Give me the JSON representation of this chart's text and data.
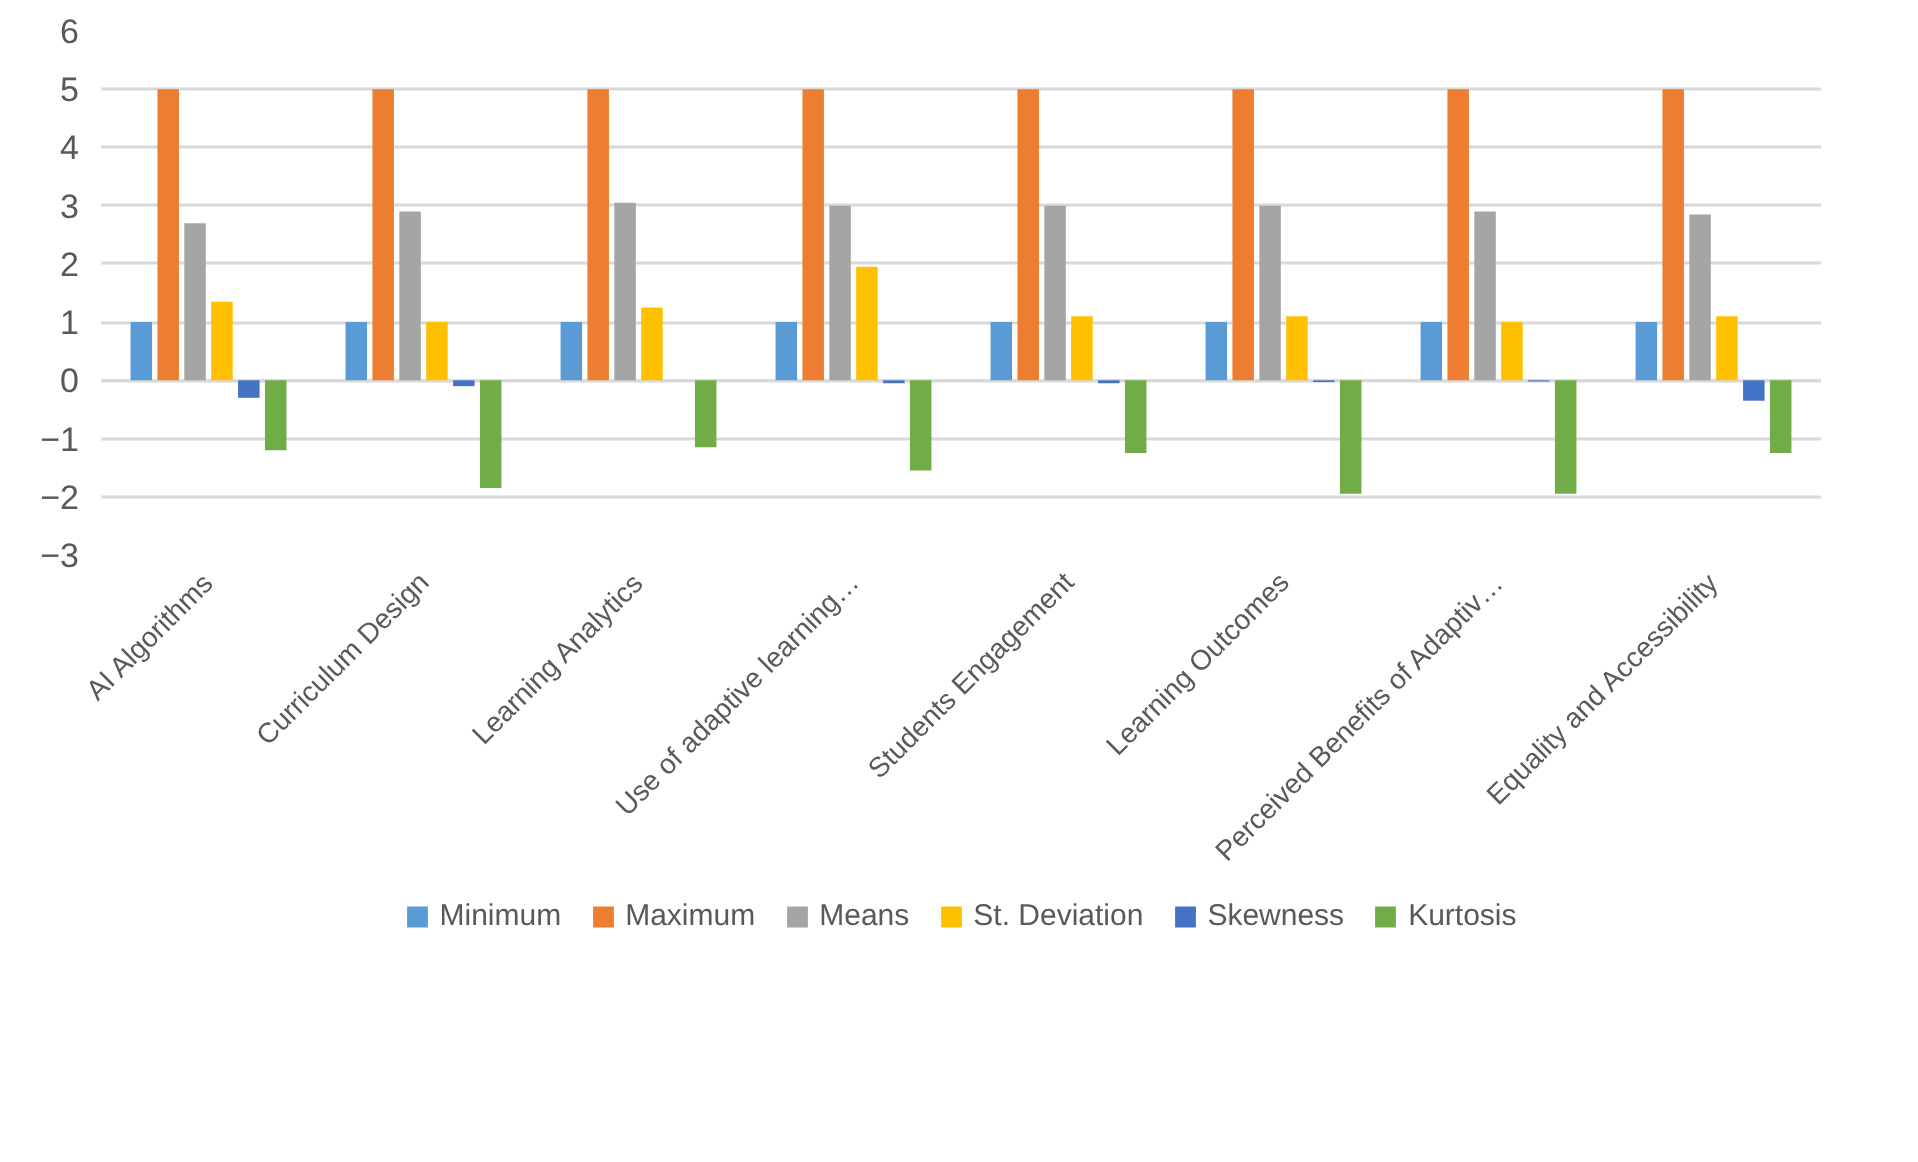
{
  "chart_data": {
    "type": "bar",
    "categories": [
      "AI Algorithms",
      "Curriculum Design",
      "Learning Analytics",
      "Use of adaptive learning…",
      "Students Engagement",
      "Learning Outcomes",
      "Perceived Benefits of Adaptiv…",
      "Equality and Accessibility"
    ],
    "series": [
      {
        "name": "Minimum",
        "color": "#5b9bd5",
        "values": [
          1,
          1,
          1,
          1,
          1,
          1,
          1,
          1
        ]
      },
      {
        "name": "Maximum",
        "color": "#ed7d31",
        "values": [
          5,
          5,
          5,
          5,
          5,
          5,
          5,
          5
        ]
      },
      {
        "name": "Means",
        "color": "#a5a5a5",
        "values": [
          2.7,
          2.9,
          3.05,
          3.0,
          3.0,
          3.0,
          2.9,
          2.85
        ]
      },
      {
        "name": "St. Deviation",
        "color": "#ffc000",
        "values": [
          1.35,
          1.0,
          1.25,
          1.95,
          1.1,
          1.1,
          1.0,
          1.1
        ]
      },
      {
        "name": "Skewness",
        "color": "#4472c4",
        "values": [
          -0.3,
          -0.1,
          0,
          -0.05,
          -0.05,
          -0.03,
          -0.02,
          -0.35
        ]
      },
      {
        "name": "Kurtosis",
        "color": "#70ad47",
        "values": [
          -1.2,
          -1.85,
          -1.15,
          -1.55,
          -1.25,
          -1.95,
          -1.95,
          -1.25
        ]
      }
    ],
    "ylim": [
      -3,
      6
    ],
    "yticks": [
      -3,
      -2,
      -1,
      0,
      1,
      2,
      3,
      4,
      5,
      6
    ],
    "grid": "y",
    "legend": "bottom"
  }
}
